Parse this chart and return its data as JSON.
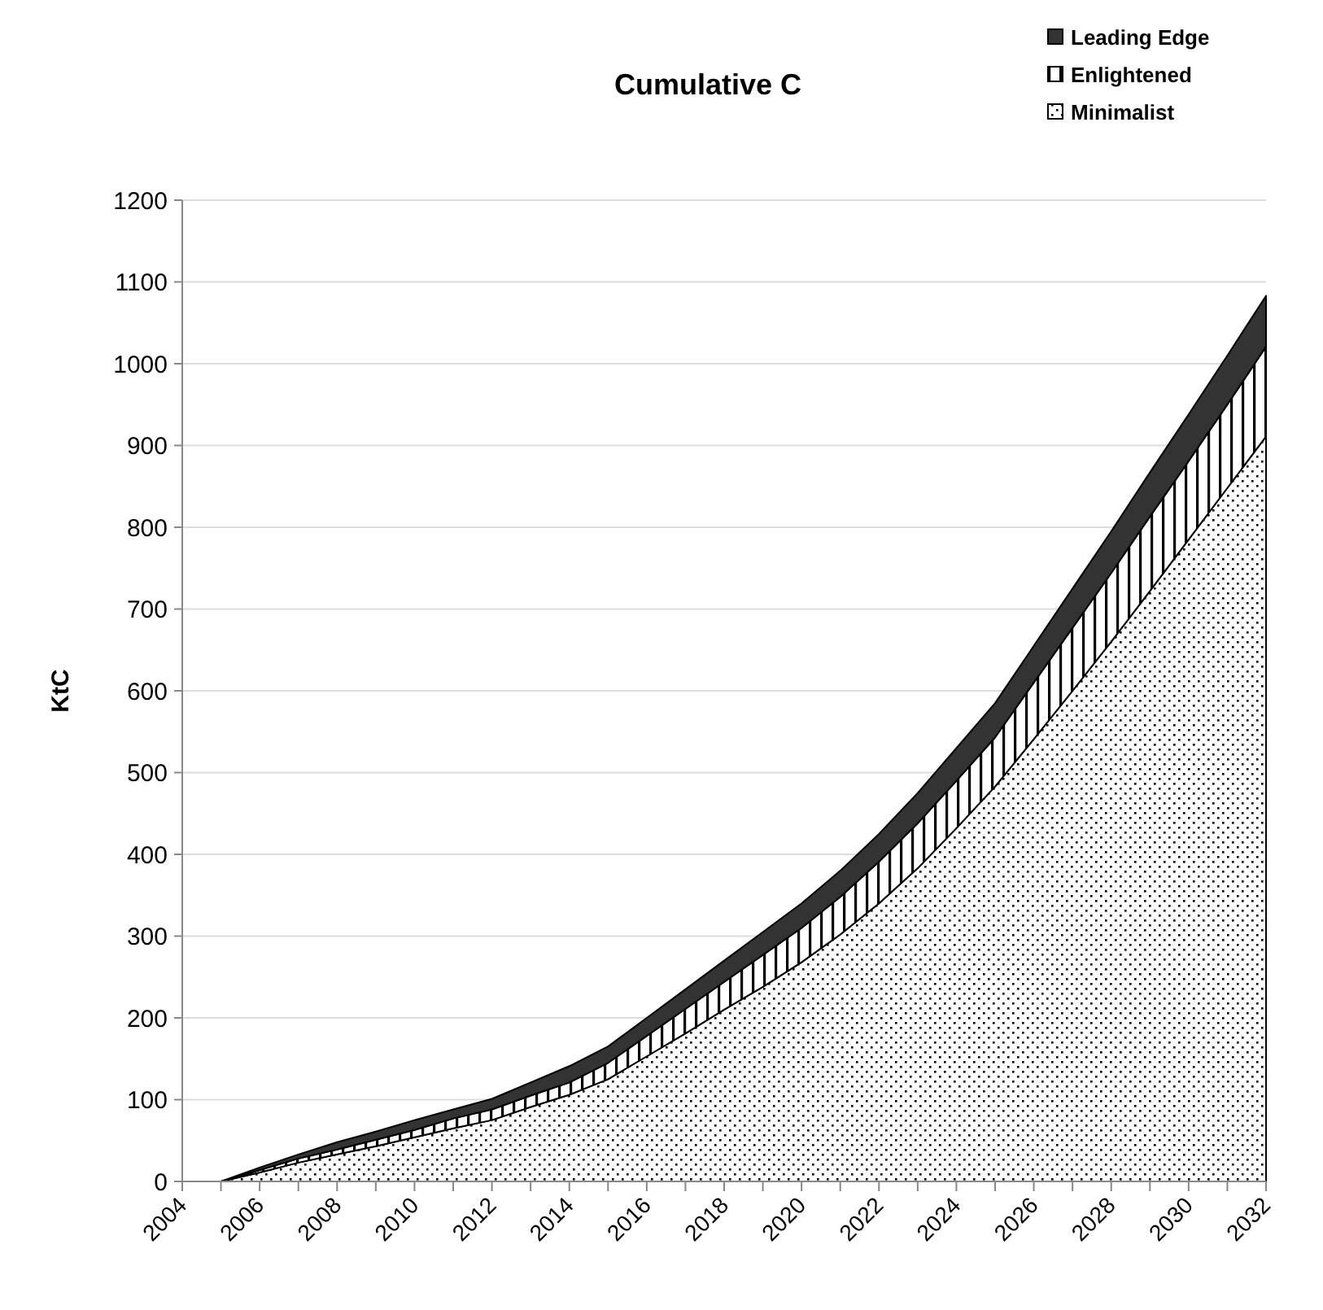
{
  "chart_data": {
    "type": "area",
    "title": "Cumulative C",
    "ylabel": "KtC",
    "stacked": true,
    "x": [
      2005,
      2006,
      2007,
      2008,
      2009,
      2010,
      2011,
      2012,
      2013,
      2014,
      2015,
      2016,
      2017,
      2018,
      2019,
      2020,
      2021,
      2022,
      2023,
      2024,
      2025,
      2026,
      2027,
      2028,
      2029,
      2030,
      2031,
      2032
    ],
    "series": [
      {
        "name": "Minimalist",
        "color": "#000000",
        "values": [
          0,
          11,
          23,
          33,
          43,
          54,
          65,
          75,
          91,
          106,
          125,
          153,
          181,
          210,
          238,
          268,
          302,
          340,
          383,
          432,
          483,
          541,
          600,
          660,
          722,
          785,
          848,
          911
        ]
      },
      {
        "name": "Enlightened",
        "color": "#000000",
        "values": [
          0,
          3,
          5,
          6,
          8,
          9,
          12,
          13,
          14,
          15,
          20,
          25,
          30,
          34,
          39,
          42,
          46,
          51,
          55,
          58,
          60,
          69,
          77,
          84,
          91,
          96,
          102,
          110
        ]
      },
      {
        "name": "Leading Edge",
        "color": "#333333",
        "values": [
          0,
          3,
          5,
          9,
          10,
          12,
          11,
          13,
          16,
          20,
          20,
          22,
          24,
          26,
          28,
          30,
          32,
          34,
          37,
          40,
          42,
          45,
          48,
          51,
          54,
          57,
          60,
          62
        ]
      }
    ],
    "xlim": [
      2004,
      2032
    ],
    "xticks": [
      2004,
      {
        "value": 2005,
        "label": null
      },
      2006,
      {
        "value": 2007,
        "label": null
      },
      2008,
      {
        "value": 2009,
        "label": null
      },
      2010,
      {
        "value": 2011,
        "label": null
      },
      2012,
      {
        "value": 2013,
        "label": null
      },
      2014,
      {
        "value": 2015,
        "label": null
      },
      2016,
      {
        "value": 2017,
        "label": null
      },
      2018,
      {
        "value": 2019,
        "label": null
      },
      2020,
      {
        "value": 2021,
        "label": null
      },
      2022,
      {
        "value": 2023,
        "label": null
      },
      2024,
      {
        "value": 2025,
        "label": null
      },
      2026,
      {
        "value": 2027,
        "label": null
      },
      2028,
      {
        "value": 2029,
        "label": null
      },
      2030,
      {
        "value": 2031,
        "label": null
      },
      2032
    ],
    "ylim": [
      0,
      1200
    ],
    "yticks": [
      0,
      100,
      200,
      300,
      400,
      500,
      600,
      700,
      800,
      900,
      1000,
      1100,
      1200
    ],
    "grid": "y",
    "legend": "top right"
  }
}
